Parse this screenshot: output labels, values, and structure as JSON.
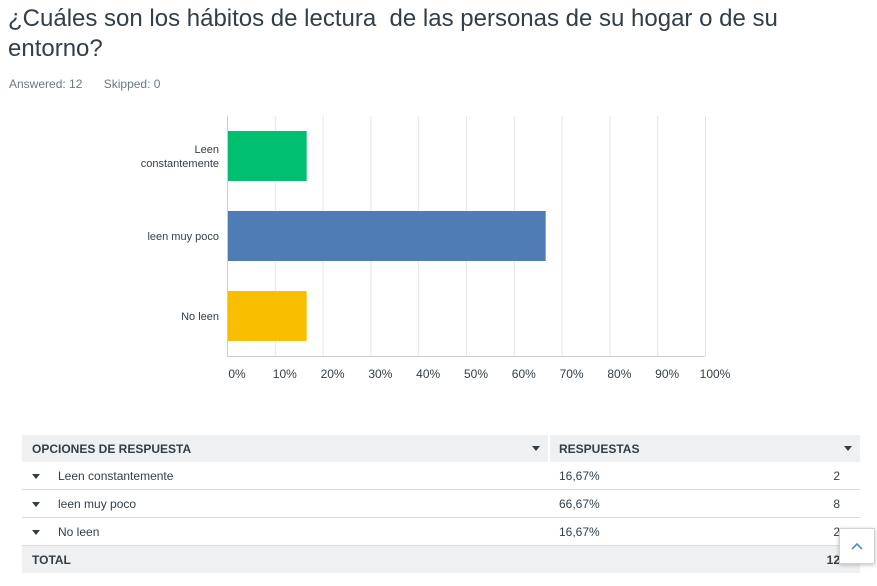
{
  "question": {
    "title": "¿Cuáles son los hábitos de lectura  de las personas de su hogar o de su entorno?",
    "answered": "Answered: 12",
    "skipped": "Skipped: 0"
  },
  "chart_data": {
    "type": "bar",
    "orientation": "horizontal",
    "categories": [
      "Leen constantemente",
      "leen muy poco",
      "No leen"
    ],
    "category_lines": [
      [
        "Leen",
        "constantemente"
      ],
      [
        "leen muy poco"
      ],
      [
        "No leen"
      ]
    ],
    "values": [
      16.67,
      66.67,
      16.67
    ],
    "colors": [
      "#00bf6f",
      "#507cb6",
      "#f9be00"
    ],
    "xlim": [
      0,
      100
    ],
    "xticks": [
      0,
      10,
      20,
      30,
      40,
      50,
      60,
      70,
      80,
      90,
      100
    ],
    "xtick_labels": [
      "0%",
      "10%",
      "20%",
      "30%",
      "40%",
      "50%",
      "60%",
      "70%",
      "80%",
      "90%",
      "100%"
    ],
    "grid": true
  },
  "table": {
    "header_option": "OPCIONES DE RESPUESTA",
    "header_responses": "RESPUESTAS",
    "rows": [
      {
        "option": "Leen constantemente",
        "percent": "16,67%",
        "count": "2"
      },
      {
        "option": "leen muy poco",
        "percent": "66,67%",
        "count": "8"
      },
      {
        "option": "No leen",
        "percent": "16,67%",
        "count": "2"
      }
    ],
    "total_label": "TOTAL",
    "total_count": "12"
  },
  "icons": {
    "sort": "caret-down-icon",
    "expand": "caret-down-icon",
    "scroll_top": "chevron-up-icon"
  }
}
